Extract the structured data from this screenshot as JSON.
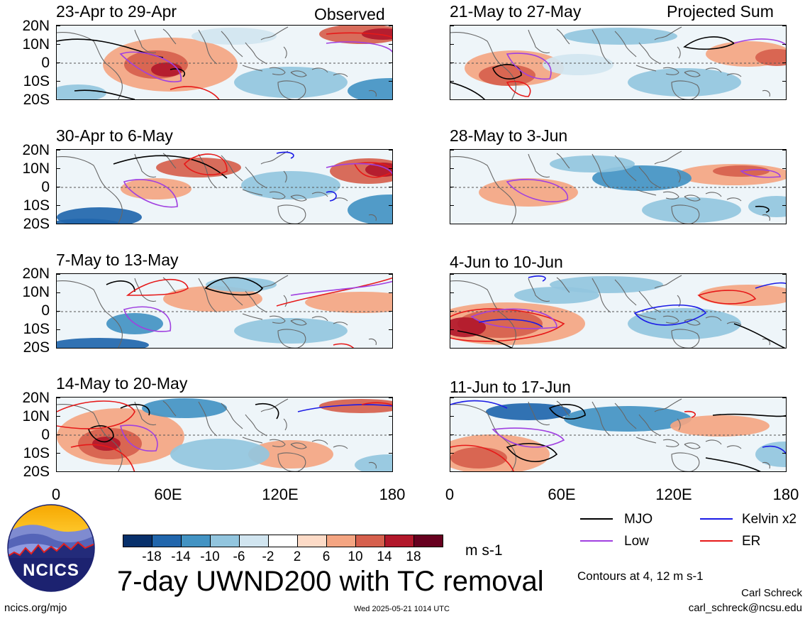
{
  "header": {
    "observed": "Observed",
    "projected": "Projected Sum"
  },
  "latitude_labels": [
    "20N",
    "10N",
    "0",
    "10S",
    "20S"
  ],
  "longitude_labels": [
    "0",
    "60E",
    "120E",
    "180"
  ],
  "panels_left": [
    {
      "title": "23-Apr to 29-Apr"
    },
    {
      "title": "30-Apr to 6-May"
    },
    {
      "title": "7-May to 13-May"
    },
    {
      "title": "14-May to 20-May"
    }
  ],
  "panels_right": [
    {
      "title": "21-May to 27-May"
    },
    {
      "title": "28-May to 3-Jun"
    },
    {
      "title": "4-Jun to 10-Jun"
    },
    {
      "title": "11-Jun to 17-Jun"
    }
  ],
  "legend": {
    "items": [
      {
        "label": "MJO",
        "color": "#000000"
      },
      {
        "label": "Kelvin x2",
        "color": "#1a1ae6"
      },
      {
        "label": "Low",
        "color": "#a040e0"
      },
      {
        "label": "ER",
        "color": "#e61919"
      }
    ],
    "contours_note": "Contours at 4, 12 m s-1"
  },
  "colorbar": {
    "labels": [
      "-18",
      "-14",
      "-10",
      "-6",
      "-2",
      "2",
      "6",
      "10",
      "14",
      "18"
    ],
    "colors": [
      "#08306b",
      "#2166ac",
      "#4393c3",
      "#92c5de",
      "#d1e5f0",
      "#ffffff",
      "#fddbc7",
      "#f4a582",
      "#d6604d",
      "#b2182b",
      "#67001f"
    ],
    "unit": "m s-1"
  },
  "main_title": "7-day UWND200 with TC removal",
  "logo_text": "NCICS",
  "footer": {
    "site": "ncics.org/mjo",
    "timestamp": "Wed 2025-05-21 1014 UTC",
    "author": "Carl Schreck",
    "email": "carl_schreck@ncsu.edu"
  }
}
